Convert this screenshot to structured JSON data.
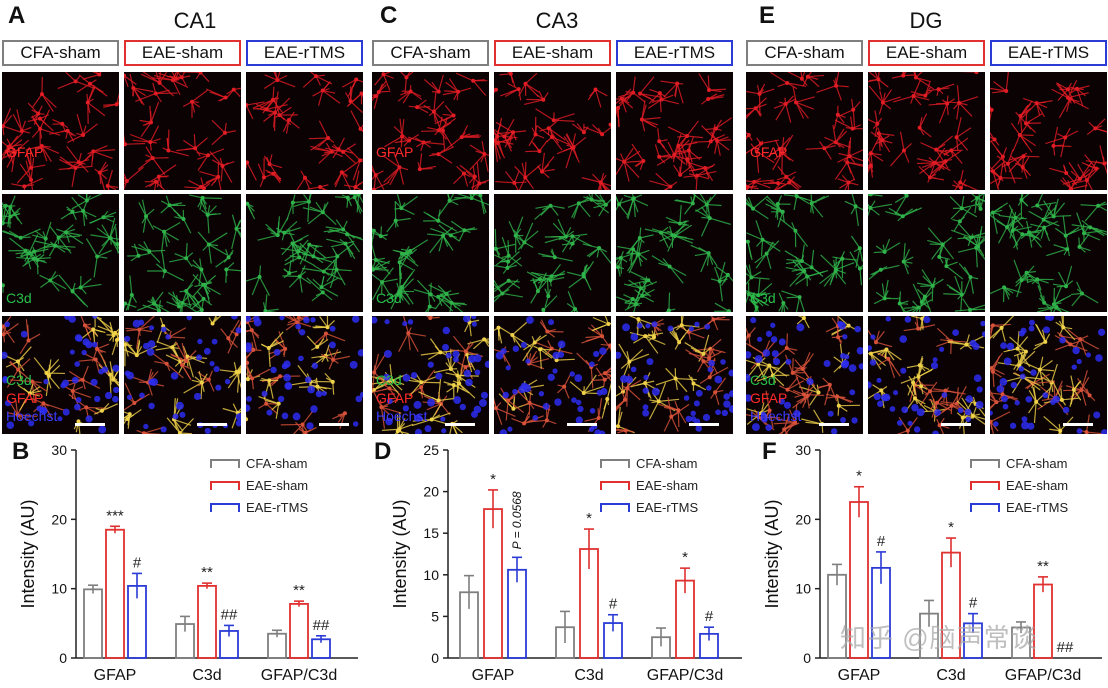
{
  "colors": {
    "cfa": "#7f7f7f",
    "eae": "#e03030",
    "rtms": "#2b3bd6",
    "gfap_text": "#ff2a2a",
    "c3d_text": "#27c04a",
    "hoechst_text": "#3b3bff"
  },
  "panels": {
    "A": {
      "letter": "A",
      "region": "CA1",
      "group_labels": [
        "CFA-sham",
        "EAE-sham",
        "EAE-rTMS"
      ],
      "row_labels": {
        "gfap": "GFAP",
        "c3d": "C3d",
        "merge": [
          "C3d",
          "GFAP",
          "Hoechst"
        ]
      }
    },
    "C": {
      "letter": "C",
      "region": "CA3",
      "group_labels": [
        "CFA-sham",
        "EAE-sham",
        "EAE-rTMS"
      ],
      "row_labels": {
        "gfap": "GFAP",
        "c3d": "C3d",
        "merge": [
          "C3d",
          "GFAP",
          "Hoechst"
        ]
      }
    },
    "E": {
      "letter": "E",
      "region": "DG",
      "group_labels": [
        "CFA-sham",
        "EAE-sham",
        "EAE-rTMS"
      ],
      "row_labels": {
        "gfap": "GFAP",
        "c3d": "C3d",
        "merge": [
          "C3d",
          "GFAP",
          "Hoechst"
        ]
      }
    }
  },
  "chart_data": [
    {
      "panel": "B",
      "type": "bar",
      "categories": [
        "GFAP",
        "C3d",
        "GFAP/C3d"
      ],
      "ylabel": "Intensity (AU)",
      "ylim": [
        0,
        30
      ],
      "yticks": [
        0,
        10,
        20,
        30
      ],
      "legend_position": "top-right",
      "series": [
        {
          "name": "CFA-sham",
          "values": [
            9.9,
            4.9,
            3.5
          ],
          "errors": [
            0.6,
            1.1,
            0.5
          ],
          "marks": [
            "",
            "",
            ""
          ]
        },
        {
          "name": "EAE-sham",
          "values": [
            18.5,
            10.4,
            7.8
          ],
          "errors": [
            0.5,
            0.4,
            0.4
          ],
          "marks": [
            "***",
            "**",
            "**"
          ]
        },
        {
          "name": "EAE-rTMS",
          "values": [
            10.4,
            3.9,
            2.7
          ],
          "errors": [
            1.8,
            0.8,
            0.5
          ],
          "marks": [
            "#",
            "##",
            "##"
          ]
        }
      ]
    },
    {
      "panel": "D",
      "type": "bar",
      "categories": [
        "GFAP",
        "C3d",
        "GFAP/C3d"
      ],
      "ylabel": "Intensity (AU)",
      "ylim": [
        0,
        25
      ],
      "yticks": [
        0,
        5,
        10,
        15,
        20,
        25
      ],
      "legend_position": "top-right",
      "series": [
        {
          "name": "CFA-sham",
          "values": [
            7.9,
            3.7,
            2.5
          ],
          "errors": [
            2.0,
            1.9,
            1.1
          ],
          "marks": [
            "",
            "",
            ""
          ]
        },
        {
          "name": "EAE-sham",
          "values": [
            17.9,
            13.1,
            9.3
          ],
          "errors": [
            2.3,
            2.4,
            1.5
          ],
          "marks": [
            "*",
            "*",
            "*"
          ]
        },
        {
          "name": "EAE-rTMS",
          "values": [
            10.6,
            4.2,
            2.9
          ],
          "errors": [
            1.5,
            1.0,
            0.8
          ],
          "marks": [
            "P = 0.0568",
            "#",
            "#"
          ]
        }
      ]
    },
    {
      "panel": "F",
      "type": "bar",
      "categories": [
        "GFAP",
        "C3d",
        "GFAP/C3d"
      ],
      "ylabel": "Intensity (AU)",
      "ylim": [
        0,
        30
      ],
      "yticks": [
        0,
        10,
        20,
        30
      ],
      "legend_position": "top-right",
      "series": [
        {
          "name": "CFA-sham",
          "values": [
            12.0,
            6.4,
            4.4
          ],
          "errors": [
            1.5,
            1.9,
            0.8
          ],
          "marks": [
            "",
            "",
            ""
          ]
        },
        {
          "name": "EAE-sham",
          "values": [
            22.5,
            15.2,
            10.6
          ],
          "errors": [
            2.2,
            2.1,
            1.1
          ],
          "marks": [
            "*",
            "*",
            "**"
          ]
        },
        {
          "name": "EAE-rTMS",
          "values": [
            13.0,
            5.0,
            0.0
          ],
          "errors": [
            2.3,
            1.4,
            0.0
          ],
          "marks": [
            "#",
            "#",
            "##"
          ]
        }
      ]
    }
  ],
  "watermark": "知乎 @脑声常谈"
}
